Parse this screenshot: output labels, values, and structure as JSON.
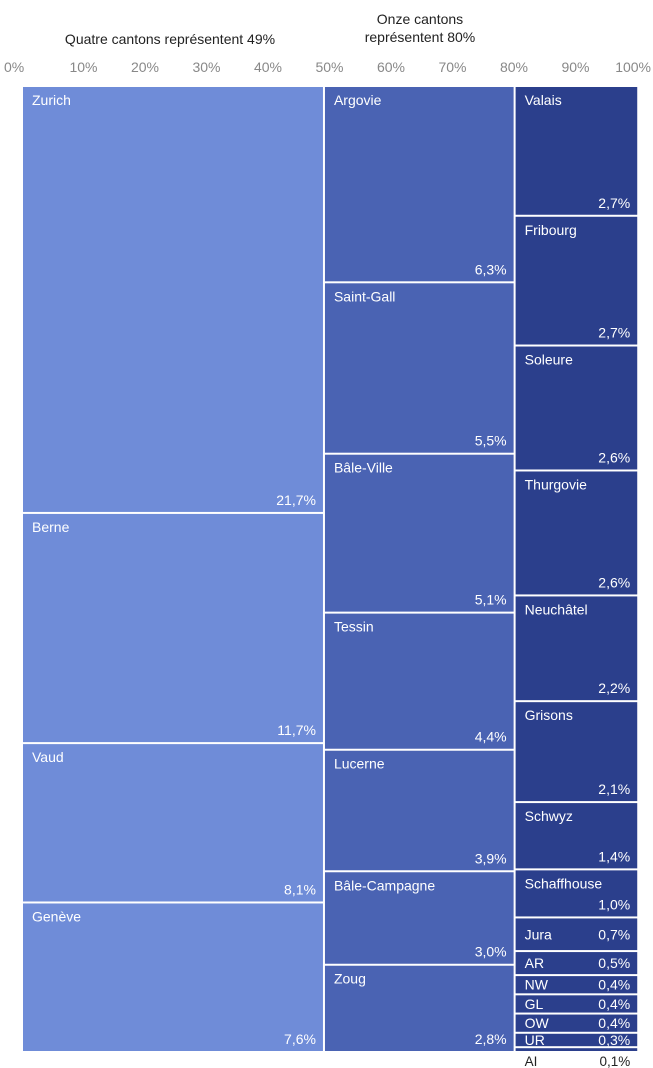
{
  "chart_data": {
    "type": "treemap",
    "xlim": [
      0,
      100
    ],
    "x_ticks": [
      "0%",
      "10%",
      "20%",
      "30%",
      "40%",
      "50%",
      "60%",
      "70%",
      "80%",
      "90%",
      "100%"
    ],
    "annotations": [
      {
        "text": "Quatre cantons représentent 49%"
      },
      {
        "text": "Onze cantons représentent 80%"
      }
    ],
    "colors": {
      "group1": "#6f8cd8",
      "group2": "#4a63b3",
      "group3": "#2b3f8c",
      "label": "#ffffff",
      "outside_label": "#222222",
      "axis": "#888888"
    },
    "columns": [
      {
        "items": [
          {
            "name": "Zurich",
            "value": 21.7,
            "label": "21,7%"
          },
          {
            "name": "Berne",
            "value": 11.7,
            "label": "11,7%"
          },
          {
            "name": "Vaud",
            "value": 8.1,
            "label": "8,1%"
          },
          {
            "name": "Genève",
            "value": 7.6,
            "label": "7,6%"
          }
        ]
      },
      {
        "items": [
          {
            "name": "Argovie",
            "value": 6.3,
            "label": "6,3%"
          },
          {
            "name": "Saint-Gall",
            "value": 5.5,
            "label": "5,5%"
          },
          {
            "name": "Bâle-Ville",
            "value": 5.1,
            "label": "5,1%"
          },
          {
            "name": "Tessin",
            "value": 4.4,
            "label": "4,4%"
          },
          {
            "name": "Lucerne",
            "value": 3.9,
            "label": "3,9%"
          },
          {
            "name": "Bâle-Campagne",
            "value": 3.0,
            "label": "3,0%"
          },
          {
            "name": "Zoug",
            "value": 2.8,
            "label": "2,8%"
          }
        ]
      },
      {
        "items": [
          {
            "name": "Valais",
            "value": 2.7,
            "label": "2,7%"
          },
          {
            "name": "Fribourg",
            "value": 2.7,
            "label": "2,7%"
          },
          {
            "name": "Soleure",
            "value": 2.6,
            "label": "2,6%"
          },
          {
            "name": "Thurgovie",
            "value": 2.6,
            "label": "2,6%"
          },
          {
            "name": "Neuchâtel",
            "value": 2.2,
            "label": "2,2%"
          },
          {
            "name": "Grisons",
            "value": 2.1,
            "label": "2,1%"
          },
          {
            "name": "Schwyz",
            "value": 1.4,
            "label": "1,4%"
          },
          {
            "name": "Schaffhouse",
            "value": 1.0,
            "label": "1,0%"
          },
          {
            "name": "Jura",
            "value": 0.7,
            "label": "0,7%"
          },
          {
            "name": "AR",
            "value": 0.5,
            "label": "0,5%"
          },
          {
            "name": "NW",
            "value": 0.4,
            "label": "0,4%"
          },
          {
            "name": "GL",
            "value": 0.4,
            "label": "0,4%"
          },
          {
            "name": "OW",
            "value": 0.4,
            "label": "0,4%"
          },
          {
            "name": "UR",
            "value": 0.3,
            "label": "0,3%"
          },
          {
            "name": "AI",
            "value": 0.1,
            "label": "0,1%"
          }
        ]
      }
    ]
  }
}
